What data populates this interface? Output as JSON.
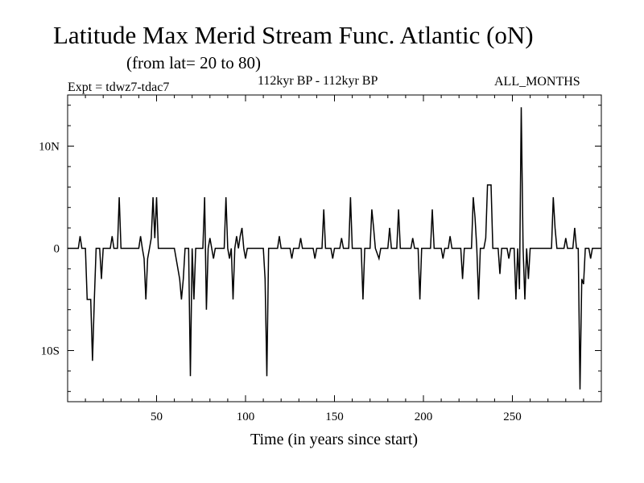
{
  "header": {
    "title": "Latitude Max Merid Stream Func. Atlantic (oN)",
    "subtitle": "(from lat= 20 to 80)",
    "expt": "Expt = tdwz7-tdac7",
    "period": "112kyr BP - 112kyr BP",
    "months": "ALL_MONTHS"
  },
  "chart_data": {
    "type": "line",
    "xlabel": "Time (in years since start)",
    "ylabel": "",
    "xlim": [
      0,
      300
    ],
    "ylim": [
      -15,
      15
    ],
    "x_ticks": [
      50,
      100,
      150,
      200,
      250
    ],
    "y_ticks": [
      {
        "value": 10,
        "label": "10N"
      },
      {
        "value": 0,
        "label": "0"
      },
      {
        "value": -10,
        "label": "10S"
      }
    ],
    "grid": false,
    "series": [
      {
        "color": "#000000",
        "points": [
          [
            0,
            0
          ],
          [
            6,
            0
          ],
          [
            7,
            1.2
          ],
          [
            8,
            0
          ],
          [
            10,
            0
          ],
          [
            11,
            -5
          ],
          [
            13,
            -5
          ],
          [
            14,
            -11
          ],
          [
            15,
            -5
          ],
          [
            16,
            0
          ],
          [
            18,
            0
          ],
          [
            19,
            -3
          ],
          [
            20,
            0
          ],
          [
            24,
            0
          ],
          [
            25,
            1.2
          ],
          [
            26,
            0
          ],
          [
            28,
            0
          ],
          [
            29,
            5
          ],
          [
            30,
            0
          ],
          [
            40,
            0
          ],
          [
            41,
            1.2
          ],
          [
            42,
            0
          ],
          [
            43,
            -1
          ],
          [
            44,
            -5
          ],
          [
            45,
            -1
          ],
          [
            46,
            0
          ],
          [
            47,
            1
          ],
          [
            48,
            5
          ],
          [
            49,
            1
          ],
          [
            50,
            5
          ],
          [
            51,
            0
          ],
          [
            60,
            0
          ],
          [
            63,
            -3
          ],
          [
            64,
            -5
          ],
          [
            65,
            -3
          ],
          [
            66,
            0
          ],
          [
            68,
            0
          ],
          [
            69,
            -12.5
          ],
          [
            70,
            0
          ],
          [
            71,
            -5
          ],
          [
            72,
            0
          ],
          [
            76,
            0
          ],
          [
            77,
            5
          ],
          [
            78,
            -6
          ],
          [
            79,
            0
          ],
          [
            80,
            1
          ],
          [
            81,
            0
          ],
          [
            82,
            -1
          ],
          [
            83,
            0
          ],
          [
            88,
            0
          ],
          [
            89,
            5
          ],
          [
            90,
            0
          ],
          [
            91,
            -1
          ],
          [
            92,
            0
          ],
          [
            93,
            -5
          ],
          [
            94,
            0
          ],
          [
            95,
            1.2
          ],
          [
            96,
            0
          ],
          [
            97,
            1.2
          ],
          [
            98,
            2
          ],
          [
            99,
            0
          ],
          [
            100,
            -1
          ],
          [
            101,
            0
          ],
          [
            110,
            0
          ],
          [
            111,
            -3
          ],
          [
            112,
            -12.5
          ],
          [
            113,
            0
          ],
          [
            118,
            0
          ],
          [
            119,
            1.2
          ],
          [
            120,
            0
          ],
          [
            125,
            0
          ],
          [
            126,
            -1
          ],
          [
            127,
            0
          ],
          [
            130,
            0
          ],
          [
            131,
            1
          ],
          [
            132,
            0
          ],
          [
            138,
            0
          ],
          [
            139,
            -1
          ],
          [
            140,
            0
          ],
          [
            143,
            0
          ],
          [
            144,
            3.8
          ],
          [
            145,
            0
          ],
          [
            148,
            0
          ],
          [
            149,
            -1
          ],
          [
            150,
            0
          ],
          [
            153,
            0
          ],
          [
            154,
            1
          ],
          [
            155,
            0
          ],
          [
            158,
            0
          ],
          [
            159,
            5
          ],
          [
            160,
            0
          ],
          [
            165,
            0
          ],
          [
            166,
            -5
          ],
          [
            167,
            0
          ],
          [
            170,
            0
          ],
          [
            171,
            3.8
          ],
          [
            172,
            2
          ],
          [
            173,
            0
          ],
          [
            175,
            -1
          ],
          [
            176,
            0
          ],
          [
            180,
            0
          ],
          [
            181,
            2
          ],
          [
            182,
            0
          ],
          [
            185,
            0
          ],
          [
            186,
            3.8
          ],
          [
            187,
            0
          ],
          [
            193,
            0
          ],
          [
            194,
            1
          ],
          [
            195,
            0
          ],
          [
            197,
            0
          ],
          [
            198,
            -5
          ],
          [
            199,
            0
          ],
          [
            204,
            0
          ],
          [
            205,
            3.8
          ],
          [
            206,
            0
          ],
          [
            210,
            0
          ],
          [
            211,
            -1
          ],
          [
            212,
            0
          ],
          [
            214,
            0
          ],
          [
            215,
            1.2
          ],
          [
            216,
            0
          ],
          [
            221,
            0
          ],
          [
            222,
            -3
          ],
          [
            223,
            0
          ],
          [
            227,
            0
          ],
          [
            228,
            5
          ],
          [
            229,
            3
          ],
          [
            230,
            0
          ],
          [
            231,
            -5
          ],
          [
            232,
            0
          ],
          [
            234,
            0
          ],
          [
            235,
            1
          ],
          [
            236,
            6.2
          ],
          [
            238,
            6.2
          ],
          [
            239,
            0
          ],
          [
            242,
            0
          ],
          [
            243,
            -2.5
          ],
          [
            244,
            0
          ],
          [
            247,
            0
          ],
          [
            248,
            -1
          ],
          [
            249,
            0
          ],
          [
            251,
            0
          ],
          [
            252,
            -5
          ],
          [
            253,
            0
          ],
          [
            254,
            -4
          ],
          [
            255,
            13.8
          ],
          [
            256,
            0
          ],
          [
            257,
            -5
          ],
          [
            258,
            0
          ],
          [
            259,
            -3
          ],
          [
            260,
            0
          ],
          [
            272,
            0
          ],
          [
            273,
            5
          ],
          [
            274,
            2
          ],
          [
            275,
            0
          ],
          [
            279,
            0
          ],
          [
            280,
            1
          ],
          [
            281,
            0
          ],
          [
            284,
            0
          ],
          [
            285,
            2
          ],
          [
            286,
            0
          ],
          [
            287,
            0
          ],
          [
            288,
            -13.8
          ],
          [
            289,
            -3
          ],
          [
            290,
            -3.5
          ],
          [
            291,
            0
          ],
          [
            293,
            0
          ],
          [
            294,
            -1
          ],
          [
            295,
            0
          ],
          [
            300,
            0
          ]
        ]
      }
    ]
  }
}
